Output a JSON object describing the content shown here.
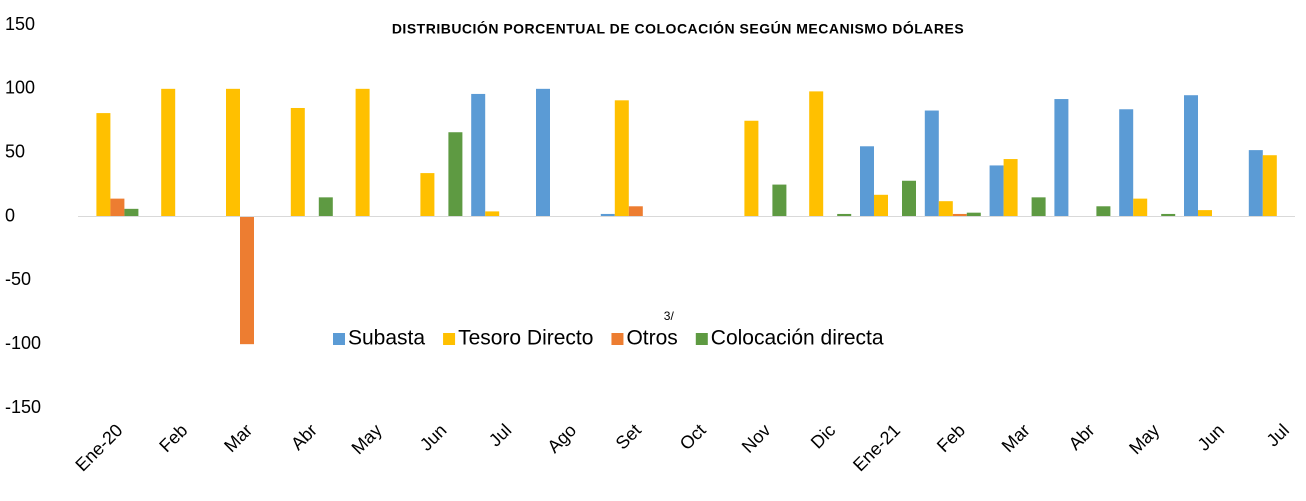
{
  "chart_data": {
    "type": "bar",
    "title": "DISTRIBUCIÓN PORCENTUAL DE COLOCACIÓN SEGÚN MECANISMO DÓLARES",
    "categories": [
      "Ene-20",
      "Feb",
      "Mar",
      "Abr",
      "May",
      "Jun",
      "Jul",
      "Ago",
      "Set",
      "Oct",
      "Nov",
      "Dic",
      "Ene-21",
      "Feb",
      "Mar",
      "Abr",
      "May",
      "Jun",
      "Jul"
    ],
    "series": [
      {
        "name": "Subasta",
        "color": "#5b9bd5",
        "values": [
          null,
          null,
          null,
          null,
          null,
          null,
          96,
          100,
          2,
          null,
          null,
          null,
          55,
          83,
          40,
          92,
          84,
          95,
          52
        ]
      },
      {
        "name": "Tesoro Directo",
        "color": "#ffc000",
        "values": [
          81,
          100,
          100,
          85,
          100,
          34,
          4,
          null,
          91,
          null,
          75,
          98,
          17,
          12,
          45,
          null,
          14,
          5,
          48
        ]
      },
      {
        "name": "Otros",
        "footnote": "3/",
        "color": "#ed7d31",
        "values": [
          14,
          null,
          -100,
          null,
          null,
          null,
          null,
          null,
          8,
          null,
          null,
          null,
          null,
          2,
          null,
          null,
          null,
          null,
          null
        ]
      },
      {
        "name": "Colocación directa",
        "color": "#5e9a42",
        "values": [
          6,
          null,
          null,
          15,
          null,
          66,
          null,
          null,
          null,
          null,
          25,
          2,
          28,
          3,
          15,
          8,
          2,
          null,
          null
        ]
      }
    ],
    "ylim": [
      -150,
      150
    ],
    "yticks": [
      -150,
      -100,
      -50,
      0,
      50,
      100,
      150
    ]
  }
}
